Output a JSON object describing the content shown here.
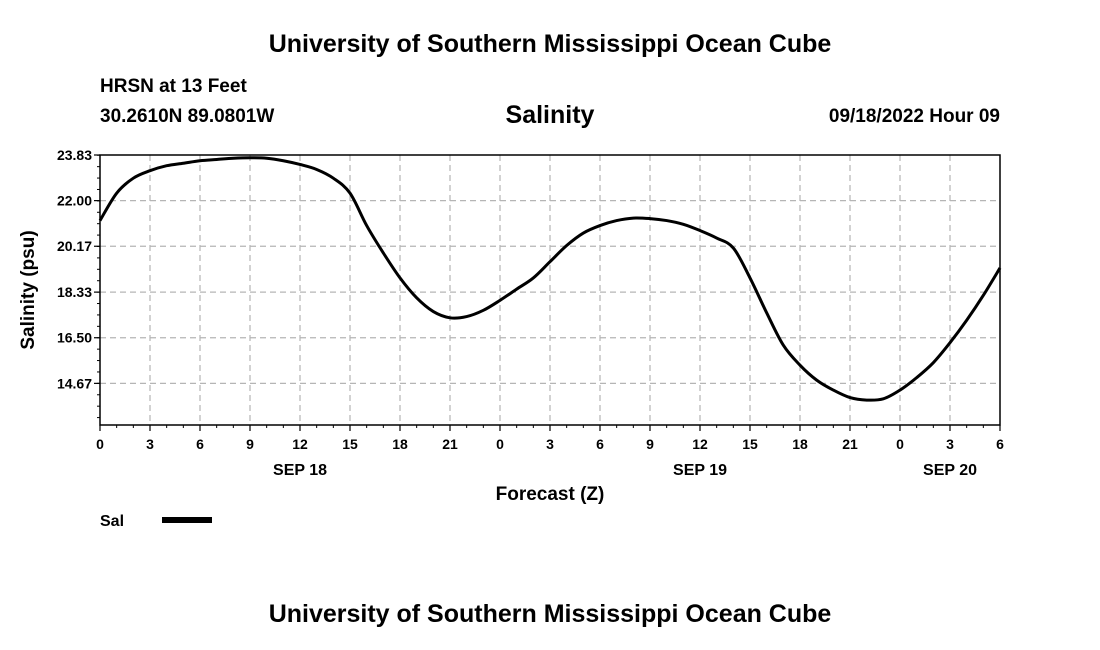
{
  "header": {
    "title": "University of Southern Mississippi Ocean Cube",
    "station": "HRSN at 13 Feet",
    "coords": "30.2610N  89.0801W",
    "chart_title": "Salinity",
    "datetime": "09/18/2022 Hour 09"
  },
  "footer": {
    "title": "University of Southern Mississippi Ocean Cube"
  },
  "legend": {
    "label": "Sal",
    "color": "#000000"
  },
  "chart_data": {
    "type": "line",
    "title": "Salinity",
    "xlabel": "Forecast (Z)",
    "ylabel": "Salinity (psu)",
    "xlim": [
      0,
      54
    ],
    "ylim": [
      13.0,
      23.83
    ],
    "y_ticks": [
      "23.83",
      "22.00",
      "20.17",
      "18.33",
      "16.50",
      "14.67"
    ],
    "y_tick_values": [
      23.83,
      22.0,
      20.17,
      18.33,
      16.5,
      14.67
    ],
    "x_tick_labels": [
      "0",
      "3",
      "6",
      "9",
      "12",
      "15",
      "18",
      "21",
      "0",
      "3",
      "6",
      "9",
      "12",
      "15",
      "18",
      "21",
      "0",
      "3",
      "6"
    ],
    "x_tick_hours": [
      0,
      3,
      6,
      9,
      12,
      15,
      18,
      21,
      24,
      27,
      30,
      33,
      36,
      39,
      42,
      45,
      48,
      51,
      54
    ],
    "date_labels": [
      {
        "label": "SEP 18",
        "hour": 12
      },
      {
        "label": "SEP 19",
        "hour": 36
      },
      {
        "label": "SEP 20",
        "hour": 51
      }
    ],
    "grid": true,
    "legend_position": "bottom-left",
    "series": [
      {
        "name": "Sal",
        "color": "#000000",
        "x": [
          0,
          1,
          2,
          3,
          4,
          5,
          6,
          7,
          8,
          9,
          10,
          11,
          12,
          13,
          14,
          15,
          16,
          17,
          18,
          19,
          20,
          21,
          22,
          23,
          24,
          25,
          26,
          27,
          28,
          29,
          30,
          31,
          32,
          33,
          34,
          35,
          36,
          37,
          38,
          39,
          40,
          41,
          42,
          43,
          44,
          45,
          46,
          47,
          48,
          49,
          50,
          51,
          52,
          53,
          54
        ],
        "y": [
          21.2,
          22.3,
          22.9,
          23.2,
          23.4,
          23.5,
          23.6,
          23.65,
          23.7,
          23.72,
          23.7,
          23.6,
          23.45,
          23.25,
          22.9,
          22.3,
          21.0,
          19.9,
          18.9,
          18.1,
          17.55,
          17.3,
          17.35,
          17.6,
          18.0,
          18.45,
          18.9,
          19.55,
          20.2,
          20.7,
          21.0,
          21.2,
          21.3,
          21.28,
          21.2,
          21.05,
          20.8,
          20.5,
          20.1,
          18.9,
          17.5,
          16.2,
          15.4,
          14.8,
          14.4,
          14.1,
          14.0,
          14.05,
          14.4,
          14.9,
          15.5,
          16.3,
          17.2,
          18.2,
          19.3
        ]
      }
    ]
  }
}
